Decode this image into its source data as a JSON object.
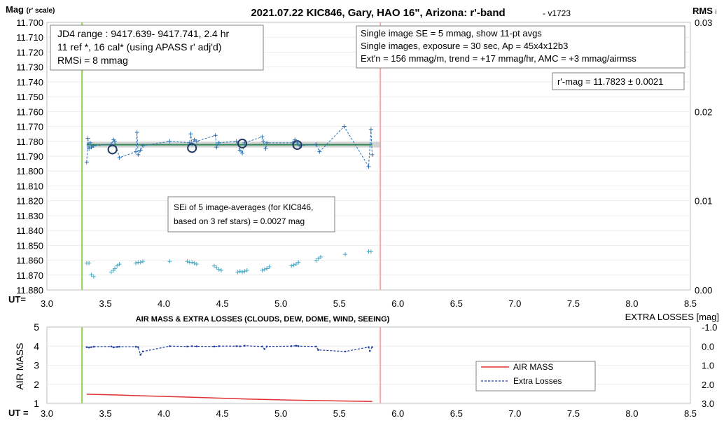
{
  "chart_data": [
    {
      "type": "scatter",
      "title": "2021.07.22 KIC846, Gary, HAO 16\", Arizona: r'-band",
      "version": "- v1723",
      "ylabel": "Mag",
      "ylabel_sub": "(r' scale)",
      "y2label": "RMS",
      "y2label_sub": "i",
      "xlabel": "UT=",
      "xlim": [
        3.0,
        8.5
      ],
      "ylim": [
        11.88,
        11.7
      ],
      "y2lim": [
        0.0,
        0.03
      ],
      "x_ticks": [
        "3.0",
        "3.5",
        "4.0",
        "4.5",
        "5.0",
        "5.5",
        "6.0",
        "6.5",
        "7.0",
        "7.5",
        "8.0",
        "8.5"
      ],
      "y_ticks": [
        "11.700",
        "11.710",
        "11.720",
        "11.730",
        "11.740",
        "11.750",
        "11.760",
        "11.770",
        "11.780",
        "11.790",
        "11.800",
        "11.810",
        "11.820",
        "11.830",
        "11.840",
        "11.850",
        "11.860",
        "11.870",
        "11.880"
      ],
      "y2_ticks": [
        "0.03",
        "0.02",
        "0.01",
        "0.00"
      ],
      "vlines": {
        "start_ut": 3.3,
        "end_ut": 5.85,
        "start_color": "#92d050",
        "end_color": "#f4a8a8"
      },
      "colors": {
        "single": "#2e75b6",
        "avg": "#203864",
        "fit": "#2e8b57",
        "band": "#b0b0b0",
        "rms": "#4bacc6"
      },
      "fit_mag": 11.7823,
      "annotations": {
        "box1": [
          "JD4 range : 9417.639- 9417.741,  2.4  hr",
          "11 ref *, 16 cal* (using APASS r' adj'd)",
          "RMSi = 8 mmag"
        ],
        "box2": [
          "Single image SE = 5 mmag, show  11-pt avgs",
          "Single images, exposure = 30 sec, Ap = 45x4x12b3",
          "Ext'n = 156 mmag/m, trend =  +17 mmag/hr, AMC = +3 mmag/airmss"
        ],
        "box3": [
          "r'-mag = 11.7823 ± 0.0021"
        ],
        "box4": [
          "SEi of 5 image-averages (for KIC846,",
          "based on 3 ref stars) = 0.0027 mag"
        ]
      },
      "single_images": {
        "x": [
          3.34,
          3.35,
          3.36,
          3.37,
          3.38,
          3.4,
          3.55,
          3.57,
          3.58,
          3.62,
          3.76,
          3.77,
          3.78,
          3.8,
          3.82,
          4.05,
          4.22,
          4.23,
          4.24,
          4.26,
          4.28,
          4.44,
          4.45,
          4.47,
          4.62,
          4.65,
          4.67,
          4.69,
          4.84,
          4.85,
          4.87,
          4.88,
          5.1,
          5.12,
          5.14,
          5.16,
          5.3,
          5.33,
          5.54,
          5.75,
          5.77,
          5.78
        ],
        "y": [
          11.794,
          11.778,
          11.785,
          11.781,
          11.784,
          11.783,
          11.782,
          11.779,
          11.78,
          11.791,
          11.787,
          11.774,
          11.789,
          11.786,
          11.783,
          11.78,
          11.781,
          11.775,
          11.782,
          11.779,
          11.78,
          11.776,
          11.784,
          11.781,
          11.78,
          11.786,
          11.788,
          11.781,
          11.777,
          11.78,
          11.785,
          11.781,
          11.781,
          11.779,
          11.781,
          11.783,
          11.782,
          11.787,
          11.77,
          11.797,
          11.772,
          11.789
        ]
      },
      "averages": {
        "x": [
          3.56,
          4.24,
          4.67,
          5.14
        ],
        "y": [
          11.7855,
          11.7845,
          11.7815,
          11.7825
        ]
      },
      "rms": {
        "x": [
          3.34,
          3.36,
          3.38,
          3.4,
          3.55,
          3.57,
          3.58,
          3.6,
          3.62,
          3.76,
          3.78,
          3.8,
          3.82,
          4.05,
          4.2,
          4.22,
          4.24,
          4.26,
          4.28,
          4.43,
          4.45,
          4.47,
          4.49,
          4.63,
          4.65,
          4.67,
          4.69,
          4.71,
          4.84,
          4.86,
          4.88,
          4.9,
          5.09,
          5.11,
          5.13,
          5.15,
          5.3,
          5.32,
          5.34,
          5.55,
          5.75,
          5.77
        ],
        "y": [
          0.003,
          0.003,
          0.0017,
          0.0015,
          0.002,
          0.0022,
          0.0024,
          0.0027,
          0.0029,
          0.003,
          0.0031,
          0.0031,
          0.0032,
          0.0032,
          0.0032,
          0.0031,
          0.0031,
          0.003,
          0.0029,
          0.0027,
          0.0025,
          0.0023,
          0.0022,
          0.002,
          0.0021,
          0.002,
          0.0021,
          0.0022,
          0.0022,
          0.0023,
          0.0024,
          0.0026,
          0.0027,
          0.0028,
          0.0029,
          0.0031,
          0.0033,
          0.0035,
          0.0037,
          0.004,
          0.0043,
          0.0043
        ]
      }
    },
    {
      "type": "line",
      "title": "AIR MASS & EXTRA LOSSES (CLOUDS, DEW, DOME, WIND, SEEING)",
      "ylabel": "AIR MASS",
      "y2label": "EXTRA LOSSES [mag]",
      "xlabel": "UT =",
      "xlim": [
        3.0,
        8.5
      ],
      "ylim": [
        1,
        5
      ],
      "y2lim": [
        3.0,
        -1.0
      ],
      "x_ticks": [
        "3.0",
        "3.5",
        "4.0",
        "4.5",
        "5.0",
        "5.5",
        "6.0",
        "6.5",
        "7.0",
        "7.5",
        "8.0",
        "8.5"
      ],
      "y_ticks": [
        "5",
        "4",
        "3",
        "2",
        "1"
      ],
      "y2_ticks": [
        "-1.0",
        "0.0",
        "1.0",
        "2.0",
        "3.0"
      ],
      "vlines": {
        "start_ut": 3.3,
        "end_ut": 5.85,
        "start_color": "#92d050",
        "end_color": "#f4a8a8"
      },
      "legend": {
        "position": "inside-right",
        "entries": [
          "AIR MASS",
          "Extra Losses"
        ]
      },
      "series": [
        {
          "name": "AIR MASS",
          "color": "#e03030",
          "x": [
            3.34,
            3.6,
            3.8,
            4.05,
            4.25,
            4.5,
            4.7,
            4.9,
            5.1,
            5.3,
            5.5,
            5.7,
            5.78
          ],
          "y": [
            1.48,
            1.44,
            1.4,
            1.36,
            1.32,
            1.27,
            1.23,
            1.2,
            1.17,
            1.15,
            1.13,
            1.11,
            1.1
          ]
        },
        {
          "name": "Extra Losses",
          "color": "#1f3fa0",
          "x": [
            3.34,
            3.36,
            3.38,
            3.4,
            3.55,
            3.57,
            3.6,
            3.62,
            3.76,
            3.78,
            3.8,
            3.82,
            4.05,
            4.2,
            4.24,
            4.28,
            4.43,
            4.47,
            4.62,
            4.65,
            4.69,
            4.84,
            4.86,
            4.88,
            5.09,
            5.13,
            5.15,
            5.3,
            5.32,
            5.55,
            5.75,
            5.76,
            5.78
          ],
          "y": [
            0.05,
            0.07,
            0.05,
            0.03,
            0.02,
            0.06,
            0.04,
            0.03,
            0.03,
            0.05,
            0.45,
            0.28,
            0.0,
            0.02,
            0.0,
            0.01,
            0.02,
            0.0,
            0.0,
            0.01,
            -0.02,
            0.02,
            0.15,
            0.02,
            0.0,
            -0.02,
            0.0,
            0.02,
            0.2,
            0.28,
            0.05,
            0.25,
            0.05
          ]
        }
      ]
    }
  ]
}
